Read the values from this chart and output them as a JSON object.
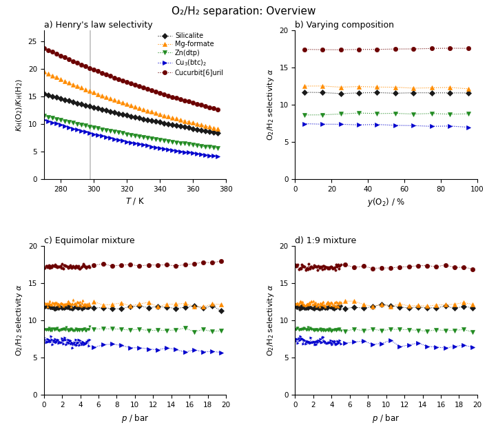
{
  "title": "O₂/H₂ separation: Overview",
  "colors": {
    "silicalite": "#1a1a1a",
    "mg_formate": "#ff8c00",
    "zn_dtp": "#228b22",
    "cu3btc2": "#0000cd",
    "cucurbit": "#6b0000"
  },
  "panel_a": {
    "title": "a) Henry's law selectivity",
    "xlabel": "$T$ / K",
    "ylabel": "$K_\\mathrm{H}$(O$_2$)/$K_\\mathrm{H}$(H$_2$)",
    "T_min": 270,
    "T_max": 375,
    "T_vline": 298,
    "ylim": [
      0.0,
      27.0
    ],
    "yticks": [
      0.0,
      5.0,
      10.0,
      15.0,
      20.0,
      25.0
    ],
    "xticks": [
      280,
      300,
      320,
      340,
      360,
      380
    ],
    "data": {
      "silicalite": {
        "T0": 270,
        "alpha0": 15.5,
        "decay": 0.0058
      },
      "mg_formate": {
        "T0": 270,
        "alpha0": 19.5,
        "decay": 0.0072
      },
      "zn_dtp": {
        "T0": 270,
        "alpha0": 11.5,
        "decay": 0.0068
      },
      "cu3btc2": {
        "T0": 270,
        "alpha0": 10.8,
        "decay": 0.0092
      },
      "cucurbit": {
        "T0": 270,
        "alpha0": 23.8,
        "decay": 0.006
      }
    }
  },
  "panel_b": {
    "title": "b) Varying composition",
    "xlabel": "$y$(O$_2$) / %",
    "ylabel": "O$_2$/H$_2$ selectivity $\\alpha$",
    "xlim": [
      0,
      100
    ],
    "ylim": [
      0.0,
      20.0
    ],
    "yticks": [
      0.0,
      5.0,
      10.0,
      15.0,
      20.0
    ],
    "xticks": [
      0,
      20,
      40,
      60,
      80,
      100
    ],
    "data": {
      "silicalite": {
        "base": 11.6,
        "slope": 0.0
      },
      "mg_formate": {
        "base": 12.35,
        "slope": -0.003
      },
      "zn_dtp": {
        "base": 8.75,
        "slope": 0.0
      },
      "cu3btc2": {
        "base": 7.25,
        "slope": -0.005
      },
      "cucurbit": {
        "base": 17.5,
        "slope": 0.002
      }
    },
    "x_pts": [
      5,
      15,
      25,
      35,
      45,
      55,
      65,
      75,
      85,
      95
    ]
  },
  "panel_c": {
    "title": "c) Equimolar mixture",
    "xlabel": "$p$ / bar",
    "ylabel": "O$_2$/H$_2$ selectivity $\\alpha$",
    "xlim": [
      0,
      20
    ],
    "ylim": [
      0.0,
      20.0
    ],
    "yticks": [
      0.0,
      5.0,
      10.0,
      15.0,
      20.0
    ],
    "xticks": [
      0,
      2,
      4,
      6,
      8,
      10,
      12,
      14,
      16,
      18,
      20
    ],
    "data": {
      "silicalite": {
        "base": 11.8,
        "end": 11.7,
        "noise": 0.15
      },
      "mg_formate": {
        "base": 12.3,
        "end": 12.1,
        "noise": 0.2
      },
      "zn_dtp": {
        "base": 8.8,
        "end": 8.7,
        "noise": 0.12
      },
      "cu3btc2": {
        "base": 7.4,
        "end": 5.5,
        "noise": 0.25
      },
      "cucurbit": {
        "base": 17.2,
        "end": 17.6,
        "noise": 0.2
      }
    }
  },
  "panel_d": {
    "title": "d) 1:9 mixture",
    "xlabel": "$p$ / bar",
    "ylabel": "O$_2$/H$_2$ selectivity $\\alpha$",
    "xlim": [
      0,
      20
    ],
    "ylim": [
      0.0,
      20.0
    ],
    "yticks": [
      0.0,
      5.0,
      10.0,
      15.0,
      20.0
    ],
    "xticks": [
      0,
      2,
      4,
      6,
      8,
      10,
      12,
      14,
      16,
      18,
      20
    ],
    "data": {
      "silicalite": {
        "base": 11.8,
        "end": 11.7,
        "noise": 0.15
      },
      "mg_formate": {
        "base": 12.3,
        "end": 12.1,
        "noise": 0.2
      },
      "zn_dtp": {
        "base": 8.8,
        "end": 8.7,
        "noise": 0.12
      },
      "cu3btc2": {
        "base": 7.4,
        "end": 6.3,
        "noise": 0.25
      },
      "cucurbit": {
        "base": 17.2,
        "end": 17.2,
        "noise": 0.18
      }
    }
  },
  "legend": {
    "silicalite": "Silicalite",
    "mg_formate": "Mg-formate",
    "zn_dtp": "Zn(dtp)",
    "cu3btc2": "Cu$_3$(btc)$_2$",
    "cucurbit": "Cucurbit[6]uril"
  },
  "markers": {
    "silicalite": "D",
    "mg_formate": "^",
    "zn_dtp": "v",
    "cu3btc2": ">",
    "cucurbit": "o"
  }
}
